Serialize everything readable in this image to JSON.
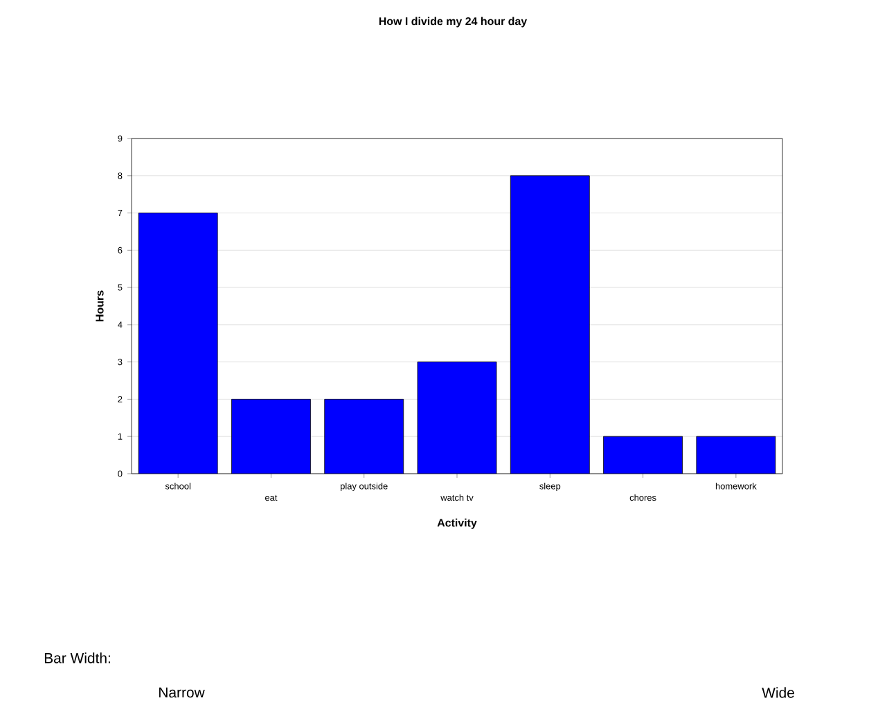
{
  "chart_data": {
    "type": "bar",
    "title": "How I divide my 24 hour day",
    "xlabel": "Activity",
    "ylabel": "Hours",
    "categories": [
      "school",
      "eat",
      "play outside",
      "watch tv",
      "sleep",
      "chores",
      "homework"
    ],
    "values": [
      7,
      2,
      2,
      3,
      8,
      1,
      1
    ],
    "color": "#0000ff",
    "ylim": [
      0,
      9
    ],
    "yticks": [
      0,
      1,
      2,
      3,
      4,
      5,
      6,
      7,
      8,
      9
    ],
    "grid": "y",
    "annotations": [
      "Bar Width:",
      "Narrow",
      "Wide"
    ]
  }
}
